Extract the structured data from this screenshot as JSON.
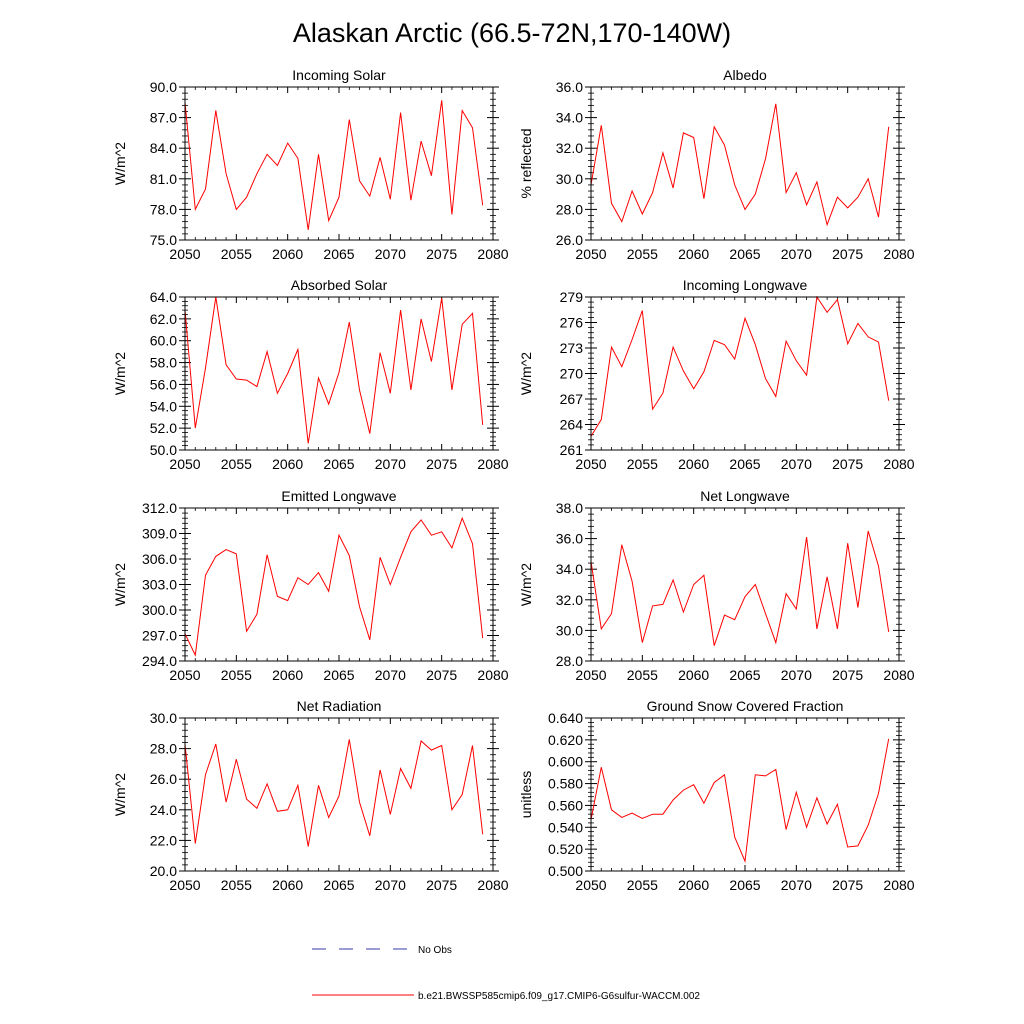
{
  "title": "Alaskan Arctic (66.5-72N,170-140W)",
  "legend": {
    "obs_label": "No Obs",
    "model_label": "b.e21.BWSSP585cmip6.f09_g17.CMIP6-G6sulfur-WACCM.002",
    "obs_color": "#3a3aa8",
    "model_color": "#ff0000"
  },
  "chart_data": [
    {
      "type": "line",
      "title": "Incoming Solar",
      "xlabel": "",
      "ylabel": "W/m^2",
      "xlim": [
        2050,
        2080
      ],
      "ylim": [
        75,
        90
      ],
      "xticks": [
        "2050",
        "2055",
        "2060",
        "2065",
        "2070",
        "2075",
        "2080"
      ],
      "yticks": [
        "75.0",
        "78.0",
        "81.0",
        "84.0",
        "87.0",
        "90.0"
      ],
      "x": [
        2050,
        2051,
        2052,
        2053,
        2054,
        2055,
        2056,
        2057,
        2058,
        2059,
        2060,
        2061,
        2062,
        2063,
        2064,
        2065,
        2066,
        2067,
        2068,
        2069,
        2070,
        2071,
        2072,
        2073,
        2074,
        2075,
        2076,
        2077,
        2078,
        2079
      ],
      "values": [
        88.5,
        78.0,
        80.0,
        87.7,
        81.5,
        78.0,
        79.2,
        81.5,
        83.4,
        82.3,
        84.5,
        83.0,
        76.0,
        83.4,
        76.9,
        79.2,
        86.8,
        80.8,
        79.3,
        83.1,
        79.0,
        87.5,
        78.9,
        84.7,
        81.3,
        88.7,
        77.5,
        87.7,
        86.0,
        78.4
      ],
      "series_color": "#ff0000"
    },
    {
      "type": "line",
      "title": "Albedo",
      "xlabel": "",
      "ylabel": "% reflected",
      "xlim": [
        2050,
        2080
      ],
      "ylim": [
        26,
        36
      ],
      "xticks": [
        "2050",
        "2055",
        "2060",
        "2065",
        "2070",
        "2075",
        "2080"
      ],
      "yticks": [
        "26.0",
        "28.0",
        "30.0",
        "32.0",
        "34.0",
        "36.0"
      ],
      "x": [
        2050,
        2051,
        2052,
        2053,
        2054,
        2055,
        2056,
        2057,
        2058,
        2059,
        2060,
        2061,
        2062,
        2063,
        2064,
        2065,
        2066,
        2067,
        2068,
        2069,
        2070,
        2071,
        2072,
        2073,
        2074,
        2075,
        2076,
        2077,
        2078,
        2079
      ],
      "values": [
        29.6,
        33.5,
        28.4,
        27.2,
        29.2,
        27.7,
        29.1,
        31.7,
        29.4,
        33.0,
        32.7,
        28.7,
        33.4,
        32.2,
        29.6,
        28.0,
        29.0,
        31.3,
        34.9,
        29.1,
        30.4,
        28.3,
        29.8,
        27.0,
        28.8,
        28.1,
        28.8,
        30.0,
        27.5,
        33.4
      ],
      "series_color": "#ff0000"
    },
    {
      "type": "line",
      "title": "Absorbed Solar",
      "xlabel": "",
      "ylabel": "W/m^2",
      "xlim": [
        2050,
        2080
      ],
      "ylim": [
        50,
        64
      ],
      "xticks": [
        "2050",
        "2055",
        "2060",
        "2065",
        "2070",
        "2075",
        "2080"
      ],
      "yticks": [
        "50.0",
        "52.0",
        "54.0",
        "56.0",
        "58.0",
        "60.0",
        "62.0",
        "64.0"
      ],
      "x": [
        2050,
        2051,
        2052,
        2053,
        2054,
        2055,
        2056,
        2057,
        2058,
        2059,
        2060,
        2061,
        2062,
        2063,
        2064,
        2065,
        2066,
        2067,
        2068,
        2069,
        2070,
        2071,
        2072,
        2073,
        2074,
        2075,
        2076,
        2077,
        2078,
        2079
      ],
      "values": [
        62.8,
        52.0,
        57.5,
        64.0,
        57.8,
        56.5,
        56.4,
        55.8,
        59.0,
        55.2,
        57.0,
        59.2,
        50.6,
        56.6,
        54.2,
        57.1,
        61.7,
        55.5,
        51.5,
        58.9,
        55.2,
        62.8,
        55.5,
        62.0,
        58.1,
        63.9,
        55.5,
        61.5,
        62.5,
        52.3
      ],
      "series_color": "#ff0000"
    },
    {
      "type": "line",
      "title": "Incoming Longwave",
      "xlabel": "",
      "ylabel": "W/m^2",
      "xlim": [
        2050,
        2080
      ],
      "ylim": [
        261,
        279
      ],
      "xticks": [
        "2050",
        "2055",
        "2060",
        "2065",
        "2070",
        "2075",
        "2080"
      ],
      "yticks": [
        "261",
        "264",
        "267",
        "270",
        "273",
        "276",
        "279"
      ],
      "x": [
        2050,
        2051,
        2052,
        2053,
        2054,
        2055,
        2056,
        2057,
        2058,
        2059,
        2060,
        2061,
        2062,
        2063,
        2064,
        2065,
        2066,
        2067,
        2068,
        2069,
        2070,
        2071,
        2072,
        2073,
        2074,
        2075,
        2076,
        2077,
        2078,
        2079
      ],
      "values": [
        262.6,
        264.6,
        273.1,
        270.8,
        274.0,
        277.4,
        265.8,
        267.7,
        273.1,
        270.3,
        268.2,
        270.2,
        273.9,
        273.4,
        271.7,
        276.5,
        273.4,
        269.4,
        267.3,
        273.8,
        271.5,
        269.8,
        279.0,
        277.2,
        278.7,
        273.5,
        275.9,
        274.3,
        273.7,
        266.8
      ],
      "series_color": "#ff0000"
    },
    {
      "type": "line",
      "title": "Emitted Longwave",
      "xlabel": "",
      "ylabel": "W/m^2",
      "xlim": [
        2050,
        2080
      ],
      "ylim": [
        294,
        312
      ],
      "xticks": [
        "2050",
        "2055",
        "2060",
        "2065",
        "2070",
        "2075",
        "2080"
      ],
      "yticks": [
        "294.0",
        "297.0",
        "300.0",
        "303.0",
        "306.0",
        "309.0",
        "312.0"
      ],
      "x": [
        2050,
        2051,
        2052,
        2053,
        2054,
        2055,
        2056,
        2057,
        2058,
        2059,
        2060,
        2061,
        2062,
        2063,
        2064,
        2065,
        2066,
        2067,
        2068,
        2069,
        2070,
        2071,
        2072,
        2073,
        2074,
        2075,
        2076,
        2077,
        2078,
        2079
      ],
      "values": [
        297.2,
        294.7,
        304.1,
        306.3,
        307.1,
        306.6,
        297.5,
        299.5,
        306.5,
        301.6,
        301.1,
        303.8,
        303.0,
        304.4,
        302.2,
        308.8,
        306.4,
        300.4,
        296.5,
        306.2,
        303.0,
        306.2,
        309.2,
        310.6,
        308.8,
        309.2,
        307.3,
        310.8,
        307.8,
        296.7
      ],
      "series_color": "#ff0000"
    },
    {
      "type": "line",
      "title": "Net Longwave",
      "xlabel": "",
      "ylabel": "W/m^2",
      "xlim": [
        2050,
        2080
      ],
      "ylim": [
        28,
        38
      ],
      "xticks": [
        "2050",
        "2055",
        "2060",
        "2065",
        "2070",
        "2075",
        "2080"
      ],
      "yticks": [
        "28.0",
        "30.0",
        "32.0",
        "34.0",
        "36.0",
        "38.0"
      ],
      "x": [
        2050,
        2051,
        2052,
        2053,
        2054,
        2055,
        2056,
        2057,
        2058,
        2059,
        2060,
        2061,
        2062,
        2063,
        2064,
        2065,
        2066,
        2067,
        2068,
        2069,
        2070,
        2071,
        2072,
        2073,
        2074,
        2075,
        2076,
        2077,
        2078,
        2079
      ],
      "values": [
        34.5,
        30.1,
        31.1,
        35.6,
        33.2,
        29.2,
        31.6,
        31.7,
        33.3,
        31.2,
        33.0,
        33.6,
        29.0,
        31.0,
        30.7,
        32.2,
        33.0,
        31.1,
        29.2,
        32.4,
        31.4,
        36.1,
        30.1,
        33.5,
        30.1,
        35.7,
        31.5,
        36.5,
        34.2,
        29.9
      ],
      "series_color": "#ff0000"
    },
    {
      "type": "line",
      "title": "Net Radiation",
      "xlabel": "",
      "ylabel": "W/m^2",
      "xlim": [
        2050,
        2080
      ],
      "ylim": [
        20,
        30
      ],
      "xticks": [
        "2050",
        "2055",
        "2060",
        "2065",
        "2070",
        "2075",
        "2080"
      ],
      "yticks": [
        "20.0",
        "22.0",
        "24.0",
        "26.0",
        "28.0",
        "30.0"
      ],
      "x": [
        2050,
        2051,
        2052,
        2053,
        2054,
        2055,
        2056,
        2057,
        2058,
        2059,
        2060,
        2061,
        2062,
        2063,
        2064,
        2065,
        2066,
        2067,
        2068,
        2069,
        2070,
        2071,
        2072,
        2073,
        2074,
        2075,
        2076,
        2077,
        2078,
        2079
      ],
      "values": [
        28.3,
        21.8,
        26.3,
        28.3,
        24.5,
        27.3,
        24.7,
        24.1,
        25.7,
        23.9,
        24.0,
        25.6,
        21.6,
        25.6,
        23.5,
        24.9,
        28.6,
        24.5,
        22.3,
        26.6,
        23.7,
        26.7,
        25.4,
        28.5,
        27.9,
        28.2,
        24.0,
        25.0,
        28.2,
        22.4
      ],
      "series_color": "#ff0000"
    },
    {
      "type": "line",
      "title": "Ground Snow Covered Fraction",
      "xlabel": "",
      "ylabel": "unitless",
      "xlim": [
        2050,
        2080
      ],
      "ylim": [
        0.5,
        0.64
      ],
      "xticks": [
        "2050",
        "2055",
        "2060",
        "2065",
        "2070",
        "2075",
        "2080"
      ],
      "yticks": [
        "0.500",
        "0.520",
        "0.540",
        "0.560",
        "0.580",
        "0.600",
        "0.620",
        "0.640"
      ],
      "x": [
        2050,
        2051,
        2052,
        2053,
        2054,
        2055,
        2056,
        2057,
        2058,
        2059,
        2060,
        2061,
        2062,
        2063,
        2064,
        2065,
        2066,
        2067,
        2068,
        2069,
        2070,
        2071,
        2072,
        2073,
        2074,
        2075,
        2076,
        2077,
        2078,
        2079
      ],
      "values": [
        0.547,
        0.595,
        0.556,
        0.549,
        0.553,
        0.548,
        0.552,
        0.552,
        0.565,
        0.574,
        0.579,
        0.562,
        0.581,
        0.588,
        0.531,
        0.509,
        0.588,
        0.587,
        0.593,
        0.538,
        0.572,
        0.54,
        0.567,
        0.543,
        0.561,
        0.522,
        0.523,
        0.542,
        0.571,
        0.621
      ],
      "series_color": "#ff0000"
    }
  ]
}
